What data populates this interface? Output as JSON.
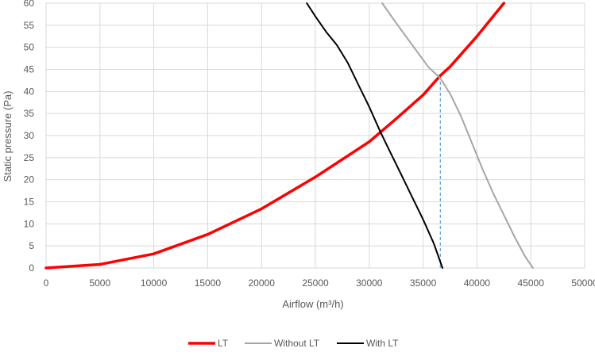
{
  "chart_data": {
    "type": "line",
    "title": "",
    "xlabel": "Airflow (m³/h)",
    "ylabel": "Static pressure (Pa)",
    "xlim": [
      0,
      50000
    ],
    "ylim": [
      0,
      60
    ],
    "x_ticks": [
      0,
      5000,
      10000,
      15000,
      20000,
      25000,
      30000,
      35000,
      40000,
      45000,
      50000
    ],
    "y_ticks": [
      0,
      5,
      10,
      15,
      20,
      25,
      30,
      35,
      40,
      45,
      50,
      55,
      60
    ],
    "x_tick_labels": [
      "0",
      "5000",
      "10000",
      "15000",
      "20000",
      "25000",
      "30000",
      "35000",
      "40000",
      "45000",
      "50000"
    ],
    "y_tick_labels": [
      "0",
      "5",
      "10",
      "15",
      "20",
      "25",
      "30",
      "35",
      "40",
      "45",
      "50",
      "55",
      "60"
    ],
    "grid": true,
    "legend_position": "bottom",
    "series": [
      {
        "name": "LT",
        "color": "#ff0000",
        "x": [
          0,
          5000,
          10000,
          15000,
          20000,
          25000,
          30000,
          32500,
          35000,
          36600,
          37500,
          40000,
          42500
        ],
        "y": [
          0,
          0.8,
          3.2,
          7.6,
          13.4,
          20.6,
          28.6,
          33.8,
          39.2,
          43.6,
          45.6,
          52.5,
          60
        ]
      },
      {
        "name": "Without LT",
        "color": "#a6a6a6",
        "x": [
          31200,
          32500,
          34000,
          35500,
          36600,
          37500,
          38500,
          39500,
          40500,
          41500,
          42500,
          43500,
          44500,
          45200
        ],
        "y": [
          60,
          55.5,
          50.5,
          45.5,
          43,
          39.5,
          34.5,
          28.5,
          22.5,
          17,
          12,
          7,
          2.5,
          0
        ]
      },
      {
        "name": "With LT",
        "color": "#000000",
        "x": [
          24200,
          25000,
          26000,
          27000,
          28000,
          29000,
          30000,
          31000,
          32000,
          33000,
          34000,
          35000,
          36000,
          36800
        ],
        "y": [
          60,
          57,
          53.5,
          50.5,
          46.5,
          41.5,
          36.5,
          31,
          26,
          21,
          16,
          11,
          5.5,
          0
        ]
      }
    ],
    "marker_line": {
      "x": 36600,
      "y": 43.5,
      "color": "#5b9bd5",
      "style": "dashed"
    }
  }
}
